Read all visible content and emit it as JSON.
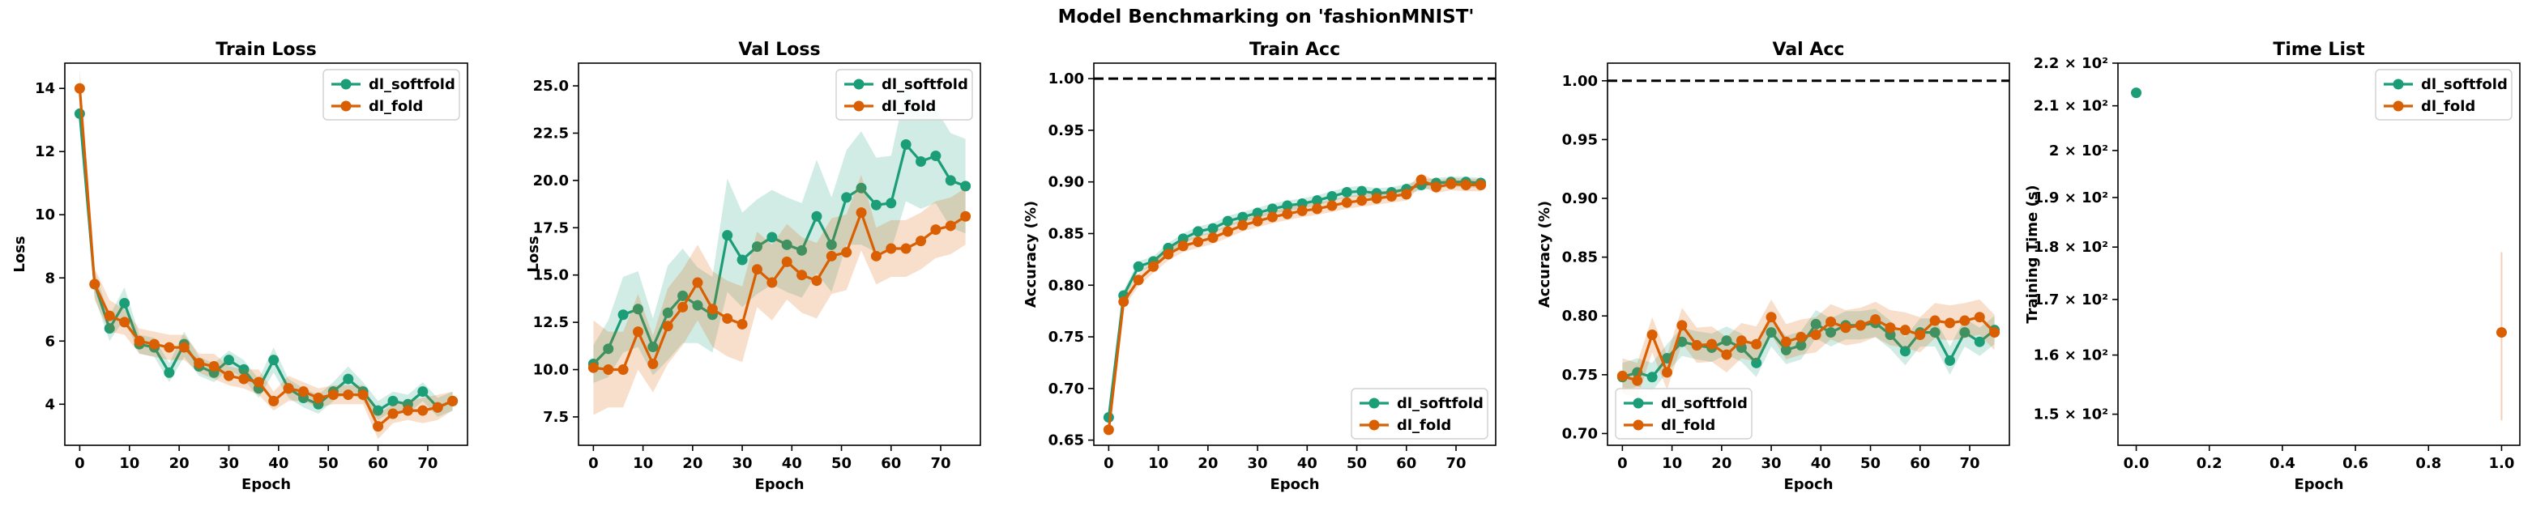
{
  "figure": {
    "suptitle": "Model Benchmarking on 'fashionMNIST'"
  },
  "colors": {
    "dl_softfold": "#1b9e77",
    "dl_fold": "#d95f02",
    "reference_line": "#000000"
  },
  "chart_data": [
    {
      "type": "line",
      "title": "Train Loss",
      "xlabel": "Epoch",
      "ylabel": "Loss",
      "xlim": [
        -3,
        78
      ],
      "ylim": [
        2.7,
        14.8
      ],
      "xticks": [
        0,
        10,
        20,
        30,
        40,
        50,
        60,
        70
      ],
      "xtick_labels": [
        "0",
        "10",
        "20",
        "30",
        "40",
        "50",
        "60",
        "70"
      ],
      "yticks": [
        4,
        6,
        8,
        10,
        12,
        14
      ],
      "ytick_labels": [
        "4",
        "6",
        "8",
        "10",
        "12",
        "14"
      ],
      "legend": {
        "position": "top-right",
        "entries": [
          "dl_softfold",
          "dl_fold"
        ]
      },
      "series": [
        {
          "name": "dl_softfold",
          "color": "#1b9e77",
          "x": [
            0,
            3,
            6,
            9,
            12,
            15,
            18,
            21,
            24,
            27,
            30,
            33,
            36,
            39,
            42,
            45,
            48,
            51,
            54,
            57,
            60,
            63,
            66,
            69,
            72,
            75
          ],
          "y": [
            13.2,
            7.8,
            6.4,
            7.2,
            5.9,
            5.8,
            5.0,
            5.9,
            5.2,
            5.0,
            5.4,
            5.1,
            4.5,
            5.4,
            4.5,
            4.2,
            4.0,
            4.4,
            4.8,
            4.4,
            3.8,
            4.1,
            4.0,
            4.4,
            3.9,
            4.1
          ],
          "err": [
            0.4,
            0.4,
            0.4,
            0.5,
            0.3,
            0.3,
            0.3,
            0.4,
            0.3,
            0.3,
            0.3,
            0.3,
            0.3,
            0.4,
            0.3,
            0.3,
            0.3,
            0.3,
            0.4,
            0.3,
            0.3,
            0.3,
            0.3,
            0.3,
            0.3,
            0.3
          ]
        },
        {
          "name": "dl_fold",
          "color": "#d95f02",
          "x": [
            0,
            3,
            6,
            9,
            12,
            15,
            18,
            21,
            24,
            27,
            30,
            33,
            36,
            39,
            42,
            45,
            48,
            51,
            54,
            57,
            60,
            63,
            66,
            69,
            72,
            75
          ],
          "y": [
            14.0,
            7.8,
            6.8,
            6.6,
            6.0,
            5.9,
            5.8,
            5.8,
            5.3,
            5.2,
            4.9,
            4.8,
            4.7,
            4.1,
            4.5,
            4.4,
            4.2,
            4.3,
            4.3,
            4.3,
            3.3,
            3.7,
            3.8,
            3.8,
            3.9,
            4.1
          ],
          "err": [
            0.6,
            0.5,
            0.5,
            0.4,
            0.4,
            0.4,
            0.4,
            0.4,
            0.3,
            0.4,
            0.3,
            0.3,
            0.4,
            0.3,
            0.4,
            0.3,
            0.3,
            0.3,
            0.3,
            0.3,
            0.4,
            0.3,
            0.3,
            0.4,
            0.4,
            0.3
          ]
        }
      ]
    },
    {
      "type": "line",
      "title": "Val Loss",
      "xlabel": "Epoch",
      "ylabel": "Loss",
      "xlim": [
        -3,
        78
      ],
      "ylim": [
        6.0,
        26.2
      ],
      "xticks": [
        0,
        10,
        20,
        30,
        40,
        50,
        60,
        70
      ],
      "xtick_labels": [
        "0",
        "10",
        "20",
        "30",
        "40",
        "50",
        "60",
        "70"
      ],
      "yticks": [
        7.5,
        10.0,
        12.5,
        15.0,
        17.5,
        20.0,
        22.5,
        25.0
      ],
      "ytick_labels": [
        "7.5",
        "10.0",
        "12.5",
        "15.0",
        "17.5",
        "20.0",
        "22.5",
        "25.0"
      ],
      "legend": {
        "position": "top-right",
        "entries": [
          "dl_softfold",
          "dl_fold"
        ]
      },
      "series": [
        {
          "name": "dl_softfold",
          "color": "#1b9e77",
          "x": [
            0,
            3,
            6,
            9,
            12,
            15,
            18,
            21,
            24,
            27,
            30,
            33,
            36,
            39,
            42,
            45,
            48,
            51,
            54,
            57,
            60,
            63,
            66,
            69,
            72,
            75
          ],
          "y": [
            10.3,
            11.1,
            12.9,
            13.2,
            11.2,
            13.0,
            13.9,
            13.4,
            12.9,
            17.1,
            15.8,
            16.5,
            17.0,
            16.6,
            16.3,
            18.1,
            16.6,
            19.1,
            19.6,
            18.7,
            18.8,
            21.9,
            21.0,
            21.3,
            20.0,
            19.7
          ],
          "err": [
            1.0,
            1.5,
            2.0,
            2.0,
            1.5,
            2.5,
            2.5,
            2.0,
            2.0,
            3.0,
            2.5,
            2.5,
            2.5,
            2.5,
            2.5,
            3.0,
            2.5,
            2.5,
            3.0,
            2.5,
            2.5,
            3.0,
            2.5,
            2.5,
            2.5,
            2.5
          ]
        },
        {
          "name": "dl_fold",
          "color": "#d95f02",
          "x": [
            0,
            3,
            6,
            9,
            12,
            15,
            18,
            21,
            24,
            27,
            30,
            33,
            36,
            39,
            42,
            45,
            48,
            51,
            54,
            57,
            60,
            63,
            66,
            69,
            72,
            75
          ],
          "y": [
            10.1,
            10.0,
            10.0,
            12.0,
            10.3,
            12.3,
            13.3,
            14.6,
            13.2,
            12.7,
            12.4,
            15.3,
            14.6,
            15.7,
            15.0,
            14.7,
            16.0,
            16.2,
            18.3,
            16.0,
            16.4,
            16.4,
            16.8,
            17.4,
            17.6,
            18.1
          ],
          "err": [
            2.5,
            2.0,
            2.0,
            2.0,
            1.5,
            2.0,
            2.0,
            2.0,
            2.0,
            2.0,
            2.0,
            2.0,
            2.0,
            2.0,
            2.0,
            2.0,
            2.0,
            2.0,
            2.0,
            1.5,
            1.5,
            1.5,
            1.5,
            1.5,
            1.5,
            1.5
          ]
        }
      ]
    },
    {
      "type": "line",
      "title": "Train Acc",
      "xlabel": "Epoch",
      "ylabel": "Accuracy (%)",
      "xlim": [
        -3,
        78
      ],
      "ylim": [
        0.645,
        1.015
      ],
      "xticks": [
        0,
        10,
        20,
        30,
        40,
        50,
        60,
        70
      ],
      "xtick_labels": [
        "0",
        "10",
        "20",
        "30",
        "40",
        "50",
        "60",
        "70"
      ],
      "yticks": [
        0.65,
        0.7,
        0.75,
        0.8,
        0.85,
        0.9,
        0.95,
        1.0
      ],
      "ytick_labels": [
        "0.65",
        "0.70",
        "0.75",
        "0.80",
        "0.85",
        "0.90",
        "0.95",
        "1.00"
      ],
      "reference_line": 1.0,
      "legend": {
        "position": "bottom-right",
        "entries": [
          "dl_softfold",
          "dl_fold"
        ]
      },
      "series": [
        {
          "name": "dl_softfold",
          "color": "#1b9e77",
          "x": [
            0,
            3,
            6,
            9,
            12,
            15,
            18,
            21,
            24,
            27,
            30,
            33,
            36,
            39,
            42,
            45,
            48,
            51,
            54,
            57,
            60,
            63,
            66,
            69,
            72,
            75
          ],
          "y": [
            0.672,
            0.79,
            0.818,
            0.823,
            0.836,
            0.845,
            0.852,
            0.855,
            0.862,
            0.866,
            0.87,
            0.874,
            0.877,
            0.879,
            0.882,
            0.886,
            0.89,
            0.891,
            0.889,
            0.89,
            0.893,
            0.897,
            0.899,
            0.9,
            0.9,
            0.899
          ],
          "err": [
            0.005,
            0.005,
            0.005,
            0.005,
            0.005,
            0.005,
            0.005,
            0.005,
            0.005,
            0.005,
            0.005,
            0.005,
            0.005,
            0.005,
            0.005,
            0.005,
            0.005,
            0.005,
            0.005,
            0.005,
            0.005,
            0.005,
            0.005,
            0.005,
            0.005,
            0.005
          ]
        },
        {
          "name": "dl_fold",
          "color": "#d95f02",
          "x": [
            0,
            3,
            6,
            9,
            12,
            15,
            18,
            21,
            24,
            27,
            30,
            33,
            36,
            39,
            42,
            45,
            48,
            51,
            54,
            57,
            60,
            63,
            66,
            69,
            72,
            75
          ],
          "y": [
            0.66,
            0.784,
            0.805,
            0.818,
            0.83,
            0.838,
            0.842,
            0.846,
            0.852,
            0.858,
            0.862,
            0.866,
            0.869,
            0.872,
            0.874,
            0.877,
            0.88,
            0.882,
            0.884,
            0.886,
            0.888,
            0.902,
            0.895,
            0.898,
            0.897,
            0.897
          ],
          "err": [
            0.006,
            0.006,
            0.006,
            0.006,
            0.006,
            0.006,
            0.006,
            0.006,
            0.006,
            0.006,
            0.006,
            0.006,
            0.006,
            0.006,
            0.006,
            0.006,
            0.006,
            0.006,
            0.006,
            0.006,
            0.006,
            0.006,
            0.006,
            0.006,
            0.006,
            0.006
          ]
        }
      ]
    },
    {
      "type": "line",
      "title": "Val Acc",
      "xlabel": "Epoch",
      "ylabel": "Accuracy (%)",
      "xlim": [
        -3,
        78
      ],
      "ylim": [
        0.69,
        1.015
      ],
      "xticks": [
        0,
        10,
        20,
        30,
        40,
        50,
        60,
        70
      ],
      "xtick_labels": [
        "0",
        "10",
        "20",
        "30",
        "40",
        "50",
        "60",
        "70"
      ],
      "yticks": [
        0.7,
        0.75,
        0.8,
        0.85,
        0.9,
        0.95,
        1.0
      ],
      "ytick_labels": [
        "0.70",
        "0.75",
        "0.80",
        "0.85",
        "0.90",
        "0.95",
        "1.00"
      ],
      "reference_line": 1.0,
      "legend": {
        "position": "bottom-left",
        "entries": [
          "dl_softfold",
          "dl_fold"
        ]
      },
      "series": [
        {
          "name": "dl_softfold",
          "color": "#1b9e77",
          "x": [
            0,
            3,
            6,
            9,
            12,
            15,
            18,
            21,
            24,
            27,
            30,
            33,
            36,
            39,
            42,
            45,
            48,
            51,
            54,
            57,
            60,
            63,
            66,
            69,
            72,
            75
          ],
          "y": [
            0.748,
            0.752,
            0.748,
            0.764,
            0.778,
            0.775,
            0.773,
            0.779,
            0.773,
            0.76,
            0.786,
            0.771,
            0.775,
            0.793,
            0.786,
            0.792,
            0.792,
            0.794,
            0.784,
            0.77,
            0.786,
            0.786,
            0.762,
            0.786,
            0.778,
            0.788
          ],
          "err": [
            0.012,
            0.012,
            0.012,
            0.012,
            0.012,
            0.012,
            0.012,
            0.012,
            0.012,
            0.012,
            0.012,
            0.012,
            0.012,
            0.012,
            0.012,
            0.012,
            0.012,
            0.012,
            0.012,
            0.012,
            0.012,
            0.012,
            0.012,
            0.012,
            0.012,
            0.012
          ]
        },
        {
          "name": "dl_fold",
          "color": "#d95f02",
          "x": [
            0,
            3,
            6,
            9,
            12,
            15,
            18,
            21,
            24,
            27,
            30,
            33,
            36,
            39,
            42,
            45,
            48,
            51,
            54,
            57,
            60,
            63,
            66,
            69,
            72,
            75
          ],
          "y": [
            0.749,
            0.745,
            0.784,
            0.752,
            0.792,
            0.775,
            0.776,
            0.767,
            0.779,
            0.776,
            0.799,
            0.778,
            0.782,
            0.784,
            0.795,
            0.79,
            0.792,
            0.797,
            0.79,
            0.788,
            0.784,
            0.796,
            0.794,
            0.796,
            0.799,
            0.786
          ],
          "err": [
            0.015,
            0.015,
            0.015,
            0.015,
            0.015,
            0.015,
            0.015,
            0.015,
            0.015,
            0.015,
            0.015,
            0.015,
            0.015,
            0.015,
            0.015,
            0.015,
            0.015,
            0.015,
            0.015,
            0.015,
            0.015,
            0.015,
            0.015,
            0.015,
            0.015,
            0.015
          ]
        }
      ]
    },
    {
      "type": "scatter",
      "title": "Time List",
      "xlabel": "Epoch",
      "ylabel": "Training Time (s)",
      "xlim": [
        -0.05,
        1.05
      ],
      "ylim": [
        145,
        220
      ],
      "yscale": "log",
      "xticks": [
        0.0,
        0.2,
        0.4,
        0.6,
        0.8,
        1.0
      ],
      "xtick_labels": [
        "0.0",
        "0.2",
        "0.4",
        "0.6",
        "0.8",
        "1.0"
      ],
      "yticks": [
        150,
        160,
        170,
        180,
        190,
        200,
        210,
        220
      ],
      "ytick_labels": [
        "1.5 × 10²",
        "1.6 × 10²",
        "1.7 × 10²",
        "1.8 × 10²",
        "1.9 × 10²",
        "2 × 10²",
        "2.1 × 10²",
        "2.2 × 10²"
      ],
      "legend": {
        "position": "top-right",
        "entries": [
          "dl_softfold",
          "dl_fold"
        ]
      },
      "series": [
        {
          "name": "dl_softfold",
          "color": "#1b9e77",
          "x": [
            0.0
          ],
          "y": [
            213
          ],
          "err": [
            0
          ]
        },
        {
          "name": "dl_fold",
          "color": "#d95f02",
          "x": [
            1.0
          ],
          "y": [
            164
          ],
          "err": [
            15
          ]
        }
      ]
    }
  ]
}
